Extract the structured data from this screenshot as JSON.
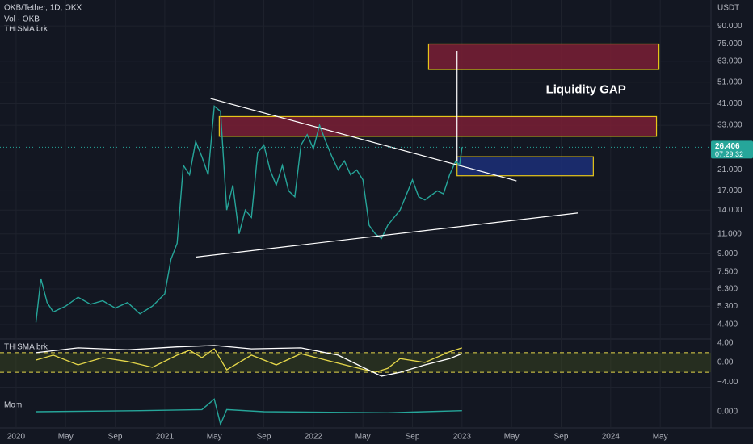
{
  "chart_data": [
    {
      "type": "line",
      "title": "OKB/Tether, 1D, OKX",
      "indicators": [
        "Vol · OKB",
        "THISMA brk"
      ],
      "y_axis_label": "USDT",
      "log_scale": true,
      "grid": true,
      "color": "#26a69a",
      "x": [
        1.6,
        2.0,
        2.5,
        3,
        4,
        5,
        6,
        7,
        8,
        9,
        10,
        11,
        12,
        12.5,
        13,
        13.5,
        14,
        14.5,
        15,
        15.5,
        16,
        16.5,
        17,
        17.5,
        18,
        18.5,
        19,
        19.5,
        20,
        20.5,
        21,
        21.5,
        22,
        22.5,
        23,
        23.5,
        24,
        24.5,
        25,
        25.5,
        26,
        26.5,
        27,
        27.5,
        28,
        28.5,
        29,
        29.5,
        30,
        31,
        32,
        32.5,
        33,
        34,
        34.5,
        35,
        35.5,
        35.8,
        36
      ],
      "values": [
        4.5,
        7.0,
        5.5,
        5.0,
        5.3,
        5.8,
        5.4,
        5.6,
        5.2,
        5.5,
        4.9,
        5.3,
        6.0,
        8.5,
        10,
        22,
        20,
        28,
        24,
        20,
        40,
        38,
        14,
        18,
        11,
        14,
        13,
        25,
        27,
        21,
        18,
        22,
        17,
        16,
        27,
        30,
        26,
        33,
        28,
        24,
        21,
        23,
        20,
        21,
        19,
        12,
        11,
        10.5,
        12,
        14,
        19,
        16,
        15.5,
        17,
        16.5,
        20,
        23,
        22,
        26.406
      ],
      "xlim": [
        -1.3,
        56.1
      ],
      "xticks": [
        {
          "value": 0,
          "label": "2020"
        },
        {
          "value": 4,
          "label": "May"
        },
        {
          "value": 8,
          "label": "Sep"
        },
        {
          "value": 12,
          "label": "2021"
        },
        {
          "value": 16,
          "label": "May"
        },
        {
          "value": 20,
          "label": "Sep"
        },
        {
          "value": 24,
          "label": "2022"
        },
        {
          "value": 28,
          "label": "May"
        },
        {
          "value": 32,
          "label": "Sep"
        },
        {
          "value": 36,
          "label": "2023"
        },
        {
          "value": 40,
          "label": "May"
        },
        {
          "value": 44,
          "label": "Sep"
        },
        {
          "value": 48,
          "label": "2024"
        },
        {
          "value": 52,
          "label": "May"
        }
      ],
      "ylim": [
        3.8,
        117
      ],
      "yticks": [
        {
          "value": 90,
          "label": "90.000"
        },
        {
          "value": 75,
          "label": "75.000"
        },
        {
          "value": 63,
          "label": "63.000"
        },
        {
          "value": 51,
          "label": "51.000"
        },
        {
          "value": 41,
          "label": "41.000"
        },
        {
          "value": 33,
          "label": "33.000"
        },
        {
          "value": 21,
          "label": "21.000"
        },
        {
          "value": 17,
          "label": "17.000"
        },
        {
          "value": 14,
          "label": "14.000"
        },
        {
          "value": 11,
          "label": "11.000"
        },
        {
          "value": 9,
          "label": "9.000"
        },
        {
          "value": 7.5,
          "label": "7.500"
        },
        {
          "value": 6.3,
          "label": "6.300"
        },
        {
          "value": 5.3,
          "label": "5.300"
        },
        {
          "value": 4.4,
          "label": "4.400"
        }
      ],
      "last_price": 26.406,
      "countdown": "07:29:32",
      "zones": [
        {
          "x": [
            33.3,
            51.9
          ],
          "y": [
            58,
            75
          ],
          "color": "#7a1f35"
        },
        {
          "x": [
            16.4,
            51.7
          ],
          "y": [
            29.5,
            36
          ],
          "color": "#7a1f35"
        },
        {
          "x": [
            35.6,
            46.6
          ],
          "y": [
            19.8,
            24
          ],
          "color": "#1c2f78"
        }
      ],
      "trendlines": [
        {
          "x": [
            15.7,
            40.4
          ],
          "y": [
            43.2,
            18.8
          ]
        },
        {
          "x": [
            14.5,
            45.4
          ],
          "y": [
            8.7,
            13.6
          ]
        },
        {
          "x": [
            35.6,
            35.6
          ],
          "y": [
            23,
            70
          ]
        }
      ],
      "annotation": {
        "text": "Liquidity GAP",
        "x": 46,
        "y": 47
      }
    },
    {
      "type": "line",
      "title": "THISMA brk",
      "ylim": [
        -4.8,
        4.8
      ],
      "yticks": [
        {
          "value": 4,
          "label": "4.00"
        },
        {
          "value": 0,
          "label": "0.00"
        },
        {
          "value": -4,
          "label": "−4.00"
        }
      ],
      "levels": [
        2,
        -2
      ],
      "series": [
        {
          "color": "#e6d84a",
          "x": [
            1.6,
            3,
            5,
            7,
            9,
            11,
            13,
            14,
            15,
            16,
            17,
            19,
            21,
            23,
            25,
            27,
            29,
            30,
            31,
            33,
            35,
            36
          ],
          "values": [
            0.5,
            1.5,
            -0.5,
            1.0,
            0.2,
            -1.0,
            1.5,
            2.5,
            1.0,
            2.8,
            -1.5,
            1.5,
            -0.5,
            1.8,
            0.5,
            -0.8,
            -2.0,
            -1.2,
            0.8,
            0.0,
            2.2,
            3.0
          ]
        },
        {
          "color": "#ffffff",
          "x": [
            1.6,
            5,
            9,
            13,
            16,
            19,
            23,
            26,
            28,
            29.5,
            31,
            33,
            35,
            36
          ],
          "values": [
            2.0,
            3.0,
            2.6,
            3.2,
            3.5,
            2.8,
            3.0,
            1.5,
            -1.0,
            -2.8,
            -2.0,
            -0.5,
            0.8,
            1.8
          ]
        }
      ]
    },
    {
      "type": "line",
      "title": "Mom",
      "color": "#26a69a",
      "ylim": [
        -1,
        1
      ],
      "yticks": [
        {
          "value": 0,
          "label": "0.000"
        }
      ],
      "x": [
        1.6,
        10,
        15,
        16,
        16.5,
        17,
        20,
        30,
        36
      ],
      "values": [
        0,
        0.05,
        0.1,
        0.6,
        -0.6,
        0.1,
        0,
        -0.05,
        0.05
      ]
    }
  ]
}
